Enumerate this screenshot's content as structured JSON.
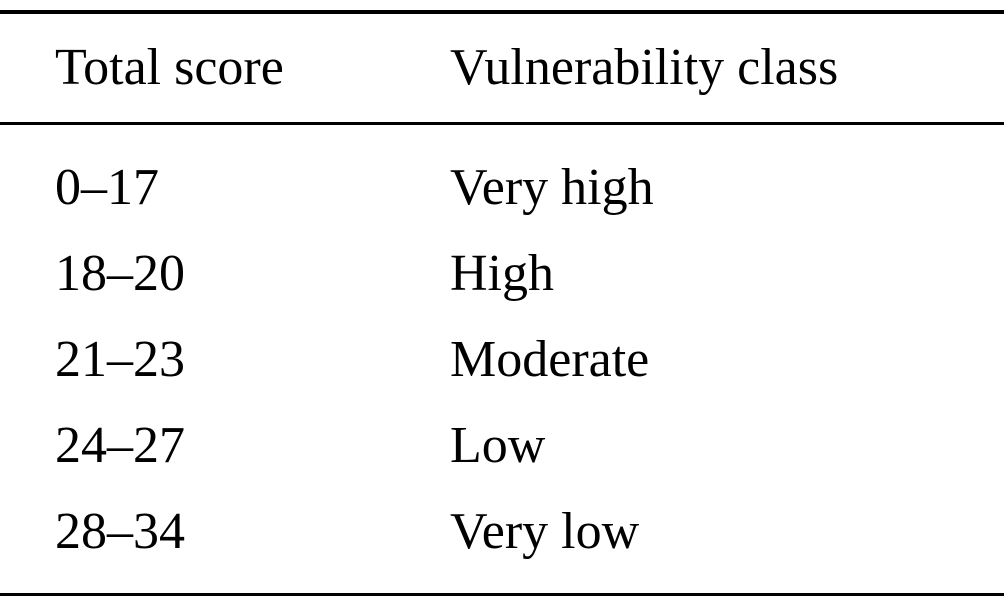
{
  "table": {
    "headers": [
      "Total score",
      "Vulnerability class"
    ],
    "rows": [
      {
        "total_score": "0–17",
        "vulnerability_class": "Very high"
      },
      {
        "total_score": "18–20",
        "vulnerability_class": "High"
      },
      {
        "total_score": "21–23",
        "vulnerability_class": "Moderate"
      },
      {
        "total_score": "24–27",
        "vulnerability_class": "Low"
      },
      {
        "total_score": "28–34",
        "vulnerability_class": "Very low"
      }
    ]
  },
  "colors": {
    "background": "#ffffff",
    "text": "#000000",
    "rule": "#000000"
  }
}
